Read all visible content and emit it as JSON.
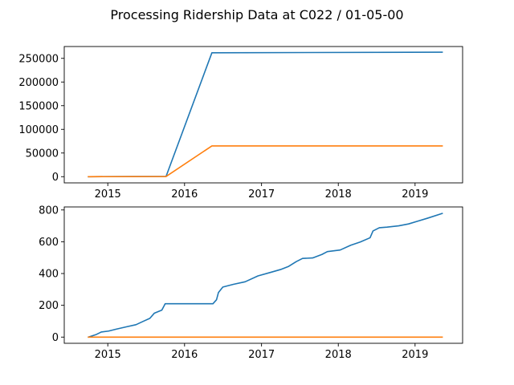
{
  "figure": {
    "title": "Processing Ridership Data at C022 / 01-05-00"
  },
  "colors": {
    "series_1": "#1f77b4",
    "series_2": "#ff7f0e",
    "axes": "#000000",
    "background": "#ffffff"
  },
  "chart_data": [
    {
      "type": "line",
      "title": "",
      "xlabel": "",
      "ylabel": "",
      "xlim": [
        "2014-06-08",
        "2019-08-15"
      ],
      "ylim": [
        -13100,
        275000
      ],
      "x_ticks": [
        "2015",
        "2016",
        "2017",
        "2018",
        "2019"
      ],
      "x_tick_dates": [
        "2015-01-01",
        "2016-01-01",
        "2017-01-01",
        "2018-01-01",
        "2019-01-01"
      ],
      "y_ticks": [
        "0",
        "50000",
        "100000",
        "150000",
        "200000",
        "250000"
      ],
      "y_tick_values": [
        0,
        50000,
        100000,
        150000,
        200000,
        250000
      ],
      "grid": false,
      "legend": "none",
      "series": [
        {
          "color": "#1f77b4",
          "points": [
            {
              "x": "2014-10-01",
              "y": 0
            },
            {
              "x": "2015-10-05",
              "y": 500
            },
            {
              "x": "2016-05-10",
              "y": 261800
            },
            {
              "x": "2019-05-10",
              "y": 263000
            }
          ]
        },
        {
          "color": "#ff7f0e",
          "points": [
            {
              "x": "2014-10-01",
              "y": 0
            },
            {
              "x": "2015-10-05",
              "y": 300
            },
            {
              "x": "2016-05-10",
              "y": 65000
            },
            {
              "x": "2019-05-10",
              "y": 65000
            }
          ]
        }
      ]
    },
    {
      "type": "line",
      "title": "",
      "xlabel": "",
      "ylabel": "",
      "xlim": [
        "2014-06-08",
        "2019-08-15"
      ],
      "ylim": [
        -39,
        819
      ],
      "x_ticks": [
        "2015",
        "2016",
        "2017",
        "2018",
        "2019"
      ],
      "x_tick_dates": [
        "2015-01-01",
        "2016-01-01",
        "2017-01-01",
        "2018-01-01",
        "2019-01-01"
      ],
      "y_ticks": [
        "0",
        "200",
        "400",
        "600",
        "800"
      ],
      "y_tick_values": [
        0,
        200,
        400,
        600,
        800
      ],
      "grid": false,
      "legend": "none",
      "series": [
        {
          "color": "#1f77b4",
          "points": [
            {
              "x": "2014-10-01",
              "y": 0
            },
            {
              "x": "2014-11-05",
              "y": 15
            },
            {
              "x": "2014-12-01",
              "y": 32
            },
            {
              "x": "2015-01-05",
              "y": 38
            },
            {
              "x": "2015-02-10",
              "y": 50
            },
            {
              "x": "2015-04-01",
              "y": 65
            },
            {
              "x": "2015-05-15",
              "y": 78
            },
            {
              "x": "2015-06-20",
              "y": 100
            },
            {
              "x": "2015-07-20",
              "y": 118
            },
            {
              "x": "2015-08-10",
              "y": 150
            },
            {
              "x": "2015-09-15",
              "y": 170
            },
            {
              "x": "2015-10-01",
              "y": 210
            },
            {
              "x": "2016-02-01",
              "y": 210
            },
            {
              "x": "2016-05-15",
              "y": 210
            },
            {
              "x": "2016-06-01",
              "y": 235
            },
            {
              "x": "2016-06-10",
              "y": 280
            },
            {
              "x": "2016-07-01",
              "y": 315
            },
            {
              "x": "2016-08-20",
              "y": 332
            },
            {
              "x": "2016-10-15",
              "y": 348
            },
            {
              "x": "2016-12-15",
              "y": 385
            },
            {
              "x": "2017-02-15",
              "y": 408
            },
            {
              "x": "2017-04-01",
              "y": 425
            },
            {
              "x": "2017-05-10",
              "y": 445
            },
            {
              "x": "2017-06-15",
              "y": 475
            },
            {
              "x": "2017-07-15",
              "y": 495
            },
            {
              "x": "2017-09-01",
              "y": 498
            },
            {
              "x": "2017-10-15",
              "y": 520
            },
            {
              "x": "2017-11-10",
              "y": 538
            },
            {
              "x": "2018-01-10",
              "y": 548
            },
            {
              "x": "2018-03-01",
              "y": 578
            },
            {
              "x": "2018-04-15",
              "y": 598
            },
            {
              "x": "2018-06-01",
              "y": 625
            },
            {
              "x": "2018-06-15",
              "y": 668
            },
            {
              "x": "2018-07-15",
              "y": 688
            },
            {
              "x": "2018-08-20",
              "y": 692
            },
            {
              "x": "2018-10-15",
              "y": 700
            },
            {
              "x": "2018-12-01",
              "y": 712
            },
            {
              "x": "2019-01-15",
              "y": 730
            },
            {
              "x": "2019-03-01",
              "y": 748
            },
            {
              "x": "2019-05-10",
              "y": 778
            }
          ]
        },
        {
          "color": "#ff7f0e",
          "points": [
            {
              "x": "2014-10-01",
              "y": 0
            },
            {
              "x": "2019-05-10",
              "y": 0
            }
          ]
        }
      ]
    }
  ]
}
